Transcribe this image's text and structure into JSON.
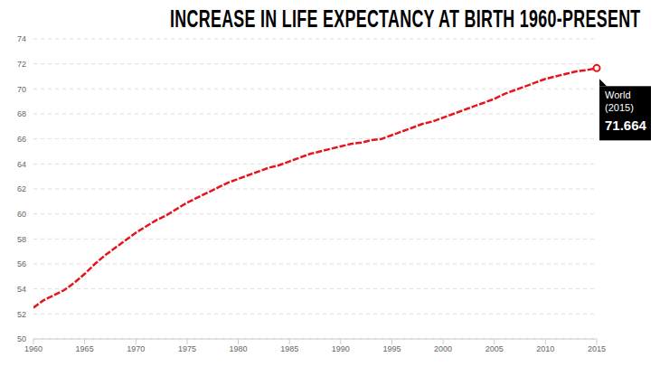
{
  "chart_data": {
    "type": "line",
    "title": "INCREASE IN LIFE EXPECTANCY AT BIRTH 1960-PRESENT",
    "x": [
      1960,
      1961,
      1962,
      1963,
      1964,
      1965,
      1966,
      1967,
      1968,
      1969,
      1970,
      1971,
      1972,
      1973,
      1974,
      1975,
      1976,
      1977,
      1978,
      1979,
      1980,
      1981,
      1982,
      1983,
      1984,
      1985,
      1986,
      1987,
      1988,
      1989,
      1990,
      1991,
      1992,
      1993,
      1994,
      1995,
      1996,
      1997,
      1998,
      1999,
      2000,
      2001,
      2002,
      2003,
      2004,
      2005,
      2006,
      2007,
      2008,
      2009,
      2010,
      2011,
      2012,
      2013,
      2014,
      2015
    ],
    "series": [
      {
        "name": "World",
        "color": "#e8141b",
        "line_style": "dashed",
        "values": [
          52.5,
          53.1,
          53.5,
          53.9,
          54.5,
          55.2,
          56.0,
          56.7,
          57.3,
          57.9,
          58.5,
          59.0,
          59.5,
          59.9,
          60.4,
          60.9,
          61.3,
          61.7,
          62.1,
          62.5,
          62.8,
          63.1,
          63.4,
          63.7,
          63.9,
          64.2,
          64.5,
          64.8,
          65.0,
          65.2,
          65.4,
          65.6,
          65.7,
          65.9,
          66.0,
          66.3,
          66.6,
          66.9,
          67.2,
          67.4,
          67.7,
          68.0,
          68.3,
          68.6,
          68.9,
          69.2,
          69.6,
          69.9,
          70.2,
          70.5,
          70.8,
          71.0,
          71.2,
          71.4,
          71.5,
          71.664
        ]
      }
    ],
    "xlim": [
      1960,
      2015
    ],
    "xticks": [
      1960,
      1965,
      1970,
      1975,
      1980,
      1985,
      1990,
      1995,
      2000,
      2005,
      2010,
      2015
    ],
    "ylim": [
      50,
      74
    ],
    "yticks": [
      50,
      52,
      54,
      56,
      58,
      60,
      62,
      64,
      66,
      68,
      70,
      72,
      74
    ],
    "grid": true,
    "annotations": [
      {
        "series": "World",
        "x": 2015,
        "x_label": "(2015)",
        "value": 71.664
      }
    ]
  }
}
